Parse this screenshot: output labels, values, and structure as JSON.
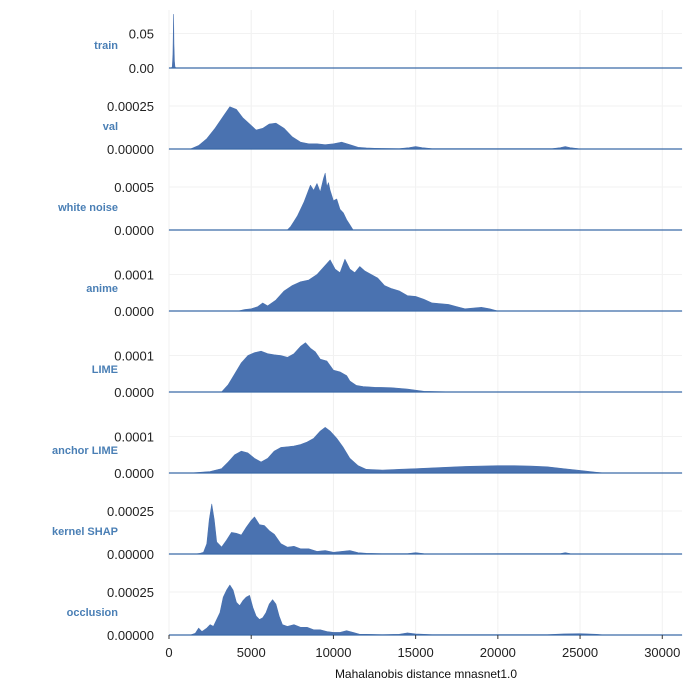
{
  "chart_data": {
    "type": "area",
    "subtype": "ridgeline-density",
    "xlabel": "Mahalanobis distance mnasnet1.0",
    "xlim": [
      0,
      31200
    ],
    "xticks": [
      0,
      5000,
      10000,
      15000,
      20000,
      25000,
      30000
    ],
    "xtick_labels": [
      "0",
      "5000",
      "10000",
      "15000",
      "20000",
      "25000",
      "30000"
    ],
    "grid": true,
    "colors": {
      "fill": "#4a72b0",
      "label": "#4a7fb5",
      "baseline": "#3b6aa8"
    },
    "series": [
      {
        "name": "train",
        "ylim": [
          0,
          0.09
        ],
        "yticks": [
          0,
          0.05
        ],
        "ytick_labels": [
          "0.00",
          "0.05"
        ],
        "x": [
          0,
          150,
          200,
          240,
          260,
          280,
          300,
          330,
          360,
          420,
          600,
          31200
        ],
        "y": [
          0,
          0,
          0.002,
          0.02,
          0.05,
          0.078,
          0.035,
          0.01,
          0.002,
          0,
          0,
          0
        ]
      },
      {
        "name": "val",
        "ylim": [
          0,
          0.00036
        ],
        "yticks": [
          0,
          0.00025
        ],
        "ytick_labels": [
          "0.00000",
          "0.00025"
        ],
        "x": [
          0,
          1300,
          1800,
          2300,
          2800,
          3300,
          3700,
          4100,
          4500,
          4900,
          5300,
          5700,
          6100,
          6500,
          7000,
          7500,
          8000,
          8500,
          9000,
          9500,
          10000,
          10500,
          11000,
          11500,
          12000,
          12500,
          13000,
          14000,
          14600,
          15000,
          15400,
          16000,
          23300,
          23800,
          24100,
          24400,
          24900,
          31200
        ],
        "y": [
          0,
          0,
          2e-05,
          6e-05,
          0.00012,
          0.00019,
          0.000245,
          0.00023,
          0.00018,
          0.000145,
          0.00011,
          0.00012,
          0.000145,
          0.00015,
          0.00012,
          7e-05,
          4e-05,
          3e-05,
          3e-05,
          2.5e-05,
          3e-05,
          4e-05,
          2.5e-05,
          1e-05,
          6e-06,
          4e-06,
          3e-06,
          2e-06,
          8e-06,
          1.4e-05,
          8e-06,
          2e-06,
          2e-06,
          8e-06,
          1.4e-05,
          8e-06,
          2e-06,
          0
        ]
      },
      {
        "name": "white noise",
        "ylim": [
          0,
          0.00072
        ],
        "yticks": [
          0,
          0.0005
        ],
        "ytick_labels": [
          "0.0000",
          "0.0005"
        ],
        "x": [
          0,
          7200,
          7400,
          7600,
          7800,
          8000,
          8200,
          8400,
          8600,
          8800,
          9000,
          9200,
          9400,
          9500,
          9600,
          9700,
          9800,
          10000,
          10200,
          10400,
          10600,
          10800,
          11000,
          11200,
          31200
        ],
        "y": [
          0,
          0,
          4e-05,
          0.0001,
          0.00016,
          0.00024,
          0.00032,
          0.00042,
          0.00052,
          0.00046,
          0.00054,
          0.00044,
          0.0006,
          0.00066,
          0.0005,
          0.00055,
          0.00046,
          0.00034,
          0.00036,
          0.00024,
          0.0002,
          0.00012,
          6e-05,
          0,
          0
        ]
      },
      {
        "name": "anime",
        "ylim": [
          0,
          0.00017
        ],
        "yticks": [
          0,
          0.0001
        ],
        "ytick_labels": [
          "0.0000",
          "0.0001"
        ],
        "x": [
          0,
          4200,
          4600,
          5000,
          5400,
          5700,
          6000,
          6500,
          7000,
          7500,
          8000,
          8500,
          9000,
          9500,
          9800,
          10100,
          10400,
          10700,
          11000,
          11300,
          11600,
          11900,
          12300,
          12700,
          13100,
          13500,
          14000,
          14500,
          15000,
          15500,
          16000,
          16500,
          17000,
          17500,
          18000,
          18500,
          19000,
          19500,
          20000,
          31200
        ],
        "y": [
          0,
          0,
          4e-06,
          6e-06,
          1.2e-05,
          2.2e-05,
          1.4e-05,
          3e-05,
          5.5e-05,
          7e-05,
          8e-05,
          8.5e-05,
          0.0001,
          0.000125,
          0.00014,
          0.000115,
          0.000105,
          0.000142,
          0.000115,
          0.000105,
          0.000122,
          0.00011,
          0.0001,
          9e-05,
          7e-05,
          6.2e-05,
          5.5e-05,
          4.2e-05,
          4e-05,
          3.2e-05,
          2.2e-05,
          2e-05,
          1.8e-05,
          1.2e-05,
          6e-06,
          8e-06,
          1e-05,
          6e-06,
          0,
          0
        ]
      },
      {
        "name": "LIME",
        "ylim": [
          0,
          0.00017
        ],
        "yticks": [
          0,
          0.0001
        ],
        "ytick_labels": [
          "0.0000",
          "0.0001"
        ],
        "x": [
          0,
          3200,
          3600,
          4000,
          4400,
          4800,
          5200,
          5600,
          6000,
          6400,
          6800,
          7200,
          7600,
          8000,
          8300,
          8600,
          8900,
          9200,
          9600,
          10000,
          10400,
          10800,
          11000,
          11400,
          11800,
          12500,
          13500,
          14500,
          15500,
          16500,
          17500,
          31200
        ],
        "y": [
          0,
          0,
          2e-05,
          5e-05,
          8e-05,
          0.0001,
          0.000108,
          0.000112,
          0.000105,
          0.000102,
          0.0001,
          9.5e-05,
          0.000105,
          0.000125,
          0.000135,
          0.00012,
          0.00011,
          9e-05,
          8.5e-05,
          6e-05,
          5.5e-05,
          4.5e-05,
          3e-05,
          1.8e-05,
          1.5e-05,
          1.3e-05,
          1.2e-05,
          8e-06,
          2e-06,
          1e-06,
          0,
          0
        ]
      },
      {
        "name": "anchor LIME",
        "ylim": [
          0,
          0.00017
        ],
        "yticks": [
          0,
          0.0001
        ],
        "ytick_labels": [
          "0.0000",
          "0.0001"
        ],
        "x": [
          0,
          1300,
          2500,
          3200,
          3600,
          4000,
          4400,
          4800,
          5200,
          5600,
          6000,
          6400,
          6800,
          7200,
          7600,
          8000,
          8400,
          8800,
          9200,
          9500,
          9800,
          10200,
          10600,
          11000,
          11500,
          12000,
          13000,
          14000,
          15000,
          16000,
          17000,
          18000,
          19000,
          20000,
          21000,
          22000,
          23000,
          24000,
          25000,
          26000,
          26500,
          31200
        ],
        "y": [
          0,
          0,
          4e-06,
          1.2e-05,
          3e-05,
          5e-05,
          6e-05,
          5.5e-05,
          4e-05,
          3e-05,
          4e-05,
          6e-05,
          7e-05,
          7.2e-05,
          7.4e-05,
          7.8e-05,
          8.5e-05,
          9.5e-05,
          0.000115,
          0.000125,
          0.000115,
          9.5e-05,
          7e-05,
          4e-05,
          2e-05,
          1e-05,
          8e-06,
          1e-05,
          1.2e-05,
          1.4e-05,
          1.6e-05,
          1.8e-05,
          1.9e-05,
          2e-05,
          2e-05,
          1.9e-05,
          1.7e-05,
          1.2e-05,
          7e-06,
          2e-06,
          0,
          0
        ]
      },
      {
        "name": "kernel SHAP",
        "ylim": [
          0,
          0.00036
        ],
        "yticks": [
          0,
          0.00025
        ],
        "ytick_labels": [
          "0.00000",
          "0.00025"
        ],
        "x": [
          0,
          1600,
          1900,
          2100,
          2300,
          2450,
          2600,
          2750,
          2900,
          3200,
          3500,
          3800,
          4100,
          4400,
          4700,
          5000,
          5200,
          5500,
          5800,
          6100,
          6400,
          6800,
          7200,
          7600,
          8000,
          8500,
          9000,
          9500,
          10000,
          10500,
          11000,
          11500,
          12000,
          13000,
          14500,
          15000,
          15500,
          16500,
          23800,
          24100,
          24400,
          31200
        ],
        "y": [
          0,
          0,
          4e-06,
          1e-05,
          6e-05,
          0.0002,
          0.00029,
          0.0002,
          7e-05,
          4e-05,
          8e-05,
          0.000125,
          0.00012,
          0.00011,
          0.000155,
          0.000195,
          0.000215,
          0.00017,
          0.000165,
          0.000135,
          0.000115,
          6e-05,
          4e-05,
          4.5e-05,
          3e-05,
          3e-05,
          1.5e-05,
          2e-05,
          1e-05,
          1.5e-05,
          2e-05,
          8e-06,
          4e-06,
          2e-06,
          2e-06,
          8e-06,
          2e-06,
          1e-06,
          2e-06,
          8e-06,
          2e-06,
          0
        ]
      },
      {
        "name": "occlusion",
        "ylim": [
          0,
          0.00036
        ],
        "yticks": [
          0,
          0.00025
        ],
        "ytick_labels": [
          "0.00000",
          "0.00025"
        ],
        "x": [
          0,
          1300,
          1600,
          1800,
          2000,
          2300,
          2500,
          2700,
          2900,
          3100,
          3300,
          3500,
          3700,
          3900,
          4100,
          4300,
          4500,
          4700,
          4900,
          5100,
          5300,
          5500,
          5700,
          5900,
          6100,
          6300,
          6500,
          6700,
          6900,
          7200,
          7600,
          8000,
          8400,
          8800,
          9200,
          9600,
          10000,
          10400,
          10800,
          11200,
          11600,
          12000,
          13000,
          14000,
          14500,
          15000,
          16000,
          23000,
          24000,
          25000,
          26000,
          26500,
          31200
        ],
        "y": [
          0,
          0,
          1e-05,
          4e-05,
          2e-05,
          4e-05,
          6e-05,
          5e-05,
          9e-05,
          0.00013,
          0.00022,
          0.00026,
          0.00029,
          0.00026,
          0.00019,
          0.00017,
          0.0002,
          0.00022,
          0.00023,
          0.00016,
          0.00011,
          9e-05,
          0.0001,
          0.00013,
          0.00018,
          0.000205,
          0.00018,
          0.00011,
          6e-05,
          5e-05,
          6e-05,
          4.5e-05,
          4.5e-05,
          3e-05,
          3e-05,
          2e-05,
          1.5e-05,
          1.5e-05,
          2.5e-05,
          1.5e-05,
          4e-06,
          4e-06,
          2e-06,
          4e-06,
          1.2e-05,
          6e-06,
          2e-06,
          2e-06,
          6e-06,
          8e-06,
          4e-06,
          0,
          0
        ]
      }
    ]
  }
}
